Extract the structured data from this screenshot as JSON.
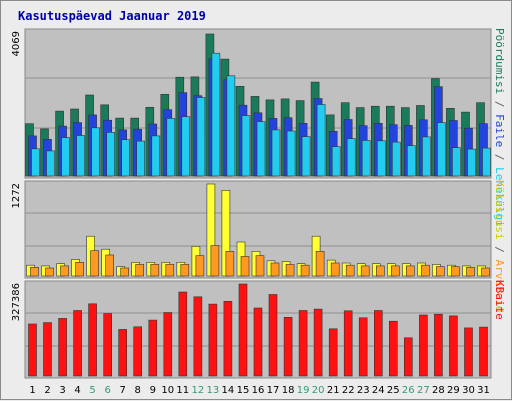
{
  "chart_data": {
    "type": "bar",
    "title": "Kasutuspäevad Jaanuar 2019",
    "categories": [
      "1",
      "2",
      "3",
      "4",
      "5",
      "6",
      "7",
      "8",
      "9",
      "10",
      "11",
      "12",
      "13",
      "14",
      "15",
      "16",
      "17",
      "18",
      "19",
      "20",
      "21",
      "22",
      "23",
      "24",
      "25",
      "26",
      "27",
      "28",
      "29",
      "30",
      "31"
    ],
    "weekend_days": [
      "5",
      "6",
      "12",
      "13",
      "19",
      "20",
      "26",
      "27"
    ],
    "panels": [
      {
        "ylabel_max": "4069",
        "ymax": 4069,
        "series": [
          {
            "name": "Pöördumisi",
            "color": "#1a7a5a",
            "values": [
              1500,
              1350,
              1860,
              1920,
              2320,
              2040,
              1660,
              1660,
              1970,
              2340,
              2830,
              2840,
              4069,
              3350,
              2570,
              2280,
              2180,
              2210,
              2160,
              2690,
              1750,
              2100,
              1960,
              2000,
              2000,
              1960,
              2020,
              2790,
              1940,
              1830,
              2100
            ]
          },
          {
            "name": "Faile",
            "color": "#2244dd",
            "values": [
              1150,
              1050,
              1430,
              1530,
              1750,
              1600,
              1320,
              1340,
              1490,
              1900,
              2390,
              2300,
              3360,
              2760,
              2030,
              1810,
              1650,
              1670,
              1510,
              2220,
              1280,
              1620,
              1440,
              1510,
              1470,
              1450,
              1610,
              2560,
              1590,
              1370,
              1500
            ]
          },
          {
            "name": "Lehekülgi",
            "color": "#22ccee",
            "values": [
              780,
              720,
              1100,
              1160,
              1380,
              1250,
              1040,
              1000,
              1150,
              1650,
              1700,
              2250,
              3520,
              2870,
              1730,
              1560,
              1320,
              1290,
              1130,
              2050,
              840,
              1070,
              1020,
              1010,
              970,
              870,
              1120,
              1530,
              810,
              770,
              800
            ]
          }
        ]
      },
      {
        "ylabel_max": "1272",
        "ymax": 1272,
        "series": [
          {
            "name": "Külastusi",
            "color": "#ffff33",
            "values": [
              150,
              140,
              170,
              230,
              550,
              370,
              130,
              190,
              190,
              190,
              190,
              410,
              1272,
              1185,
              470,
              340,
              210,
              200,
              170,
              550,
              220,
              180,
              170,
              170,
              170,
              170,
              180,
              160,
              150,
              140,
              140
            ]
          },
          {
            "name": "Arvuteid",
            "color": "#ff9922",
            "values": [
              120,
              110,
              140,
              190,
              350,
              290,
              110,
              160,
              160,
              160,
              160,
              280,
              420,
              340,
              270,
              280,
              180,
              160,
              150,
              340,
              180,
              150,
              140,
              140,
              140,
              140,
              150,
              130,
              130,
              120,
              110
            ]
          }
        ]
      },
      {
        "ylabel_max": "327386",
        "ymax": 327386,
        "series": [
          {
            "name": "KBaite",
            "color": "#ff1111",
            "values": [
              185000,
              190000,
              205000,
              233000,
              257000,
              222000,
              166000,
              175000,
              199000,
              226000,
              299000,
              282000,
              256000,
              266000,
              327386,
              242000,
              290000,
              209000,
              233000,
              238000,
              168000,
              232000,
              207000,
              233000,
              195000,
              136000,
              217000,
              220000,
              214000,
              171000,
              174000
            ]
          }
        ]
      }
    ],
    "legend": {
      "side": "right",
      "panel1": [
        {
          "text": "Pöördumisi",
          "color": "#1a7a5a"
        },
        {
          "text": " / ",
          "color": "#666666"
        },
        {
          "text": "Faile",
          "color": "#2244dd"
        },
        {
          "text": " / ",
          "color": "#666666"
        },
        {
          "text": "Lehekülgi",
          "color": "#22ccee"
        }
      ],
      "panel2": [
        {
          "text": "Külastusi",
          "color": "#cccc00"
        },
        {
          "text": " / ",
          "color": "#666666"
        },
        {
          "text": "Arvuteid",
          "color": "#ff9922"
        }
      ],
      "panel3": [
        {
          "text": "KBaite",
          "color": "#ff1111"
        }
      ]
    },
    "colors": {
      "plot_bg": "#c0c0c0",
      "page_bg": "#ececec",
      "title": "#0000aa",
      "weekday_label": "#000000",
      "weekend_label": "#339977"
    }
  }
}
